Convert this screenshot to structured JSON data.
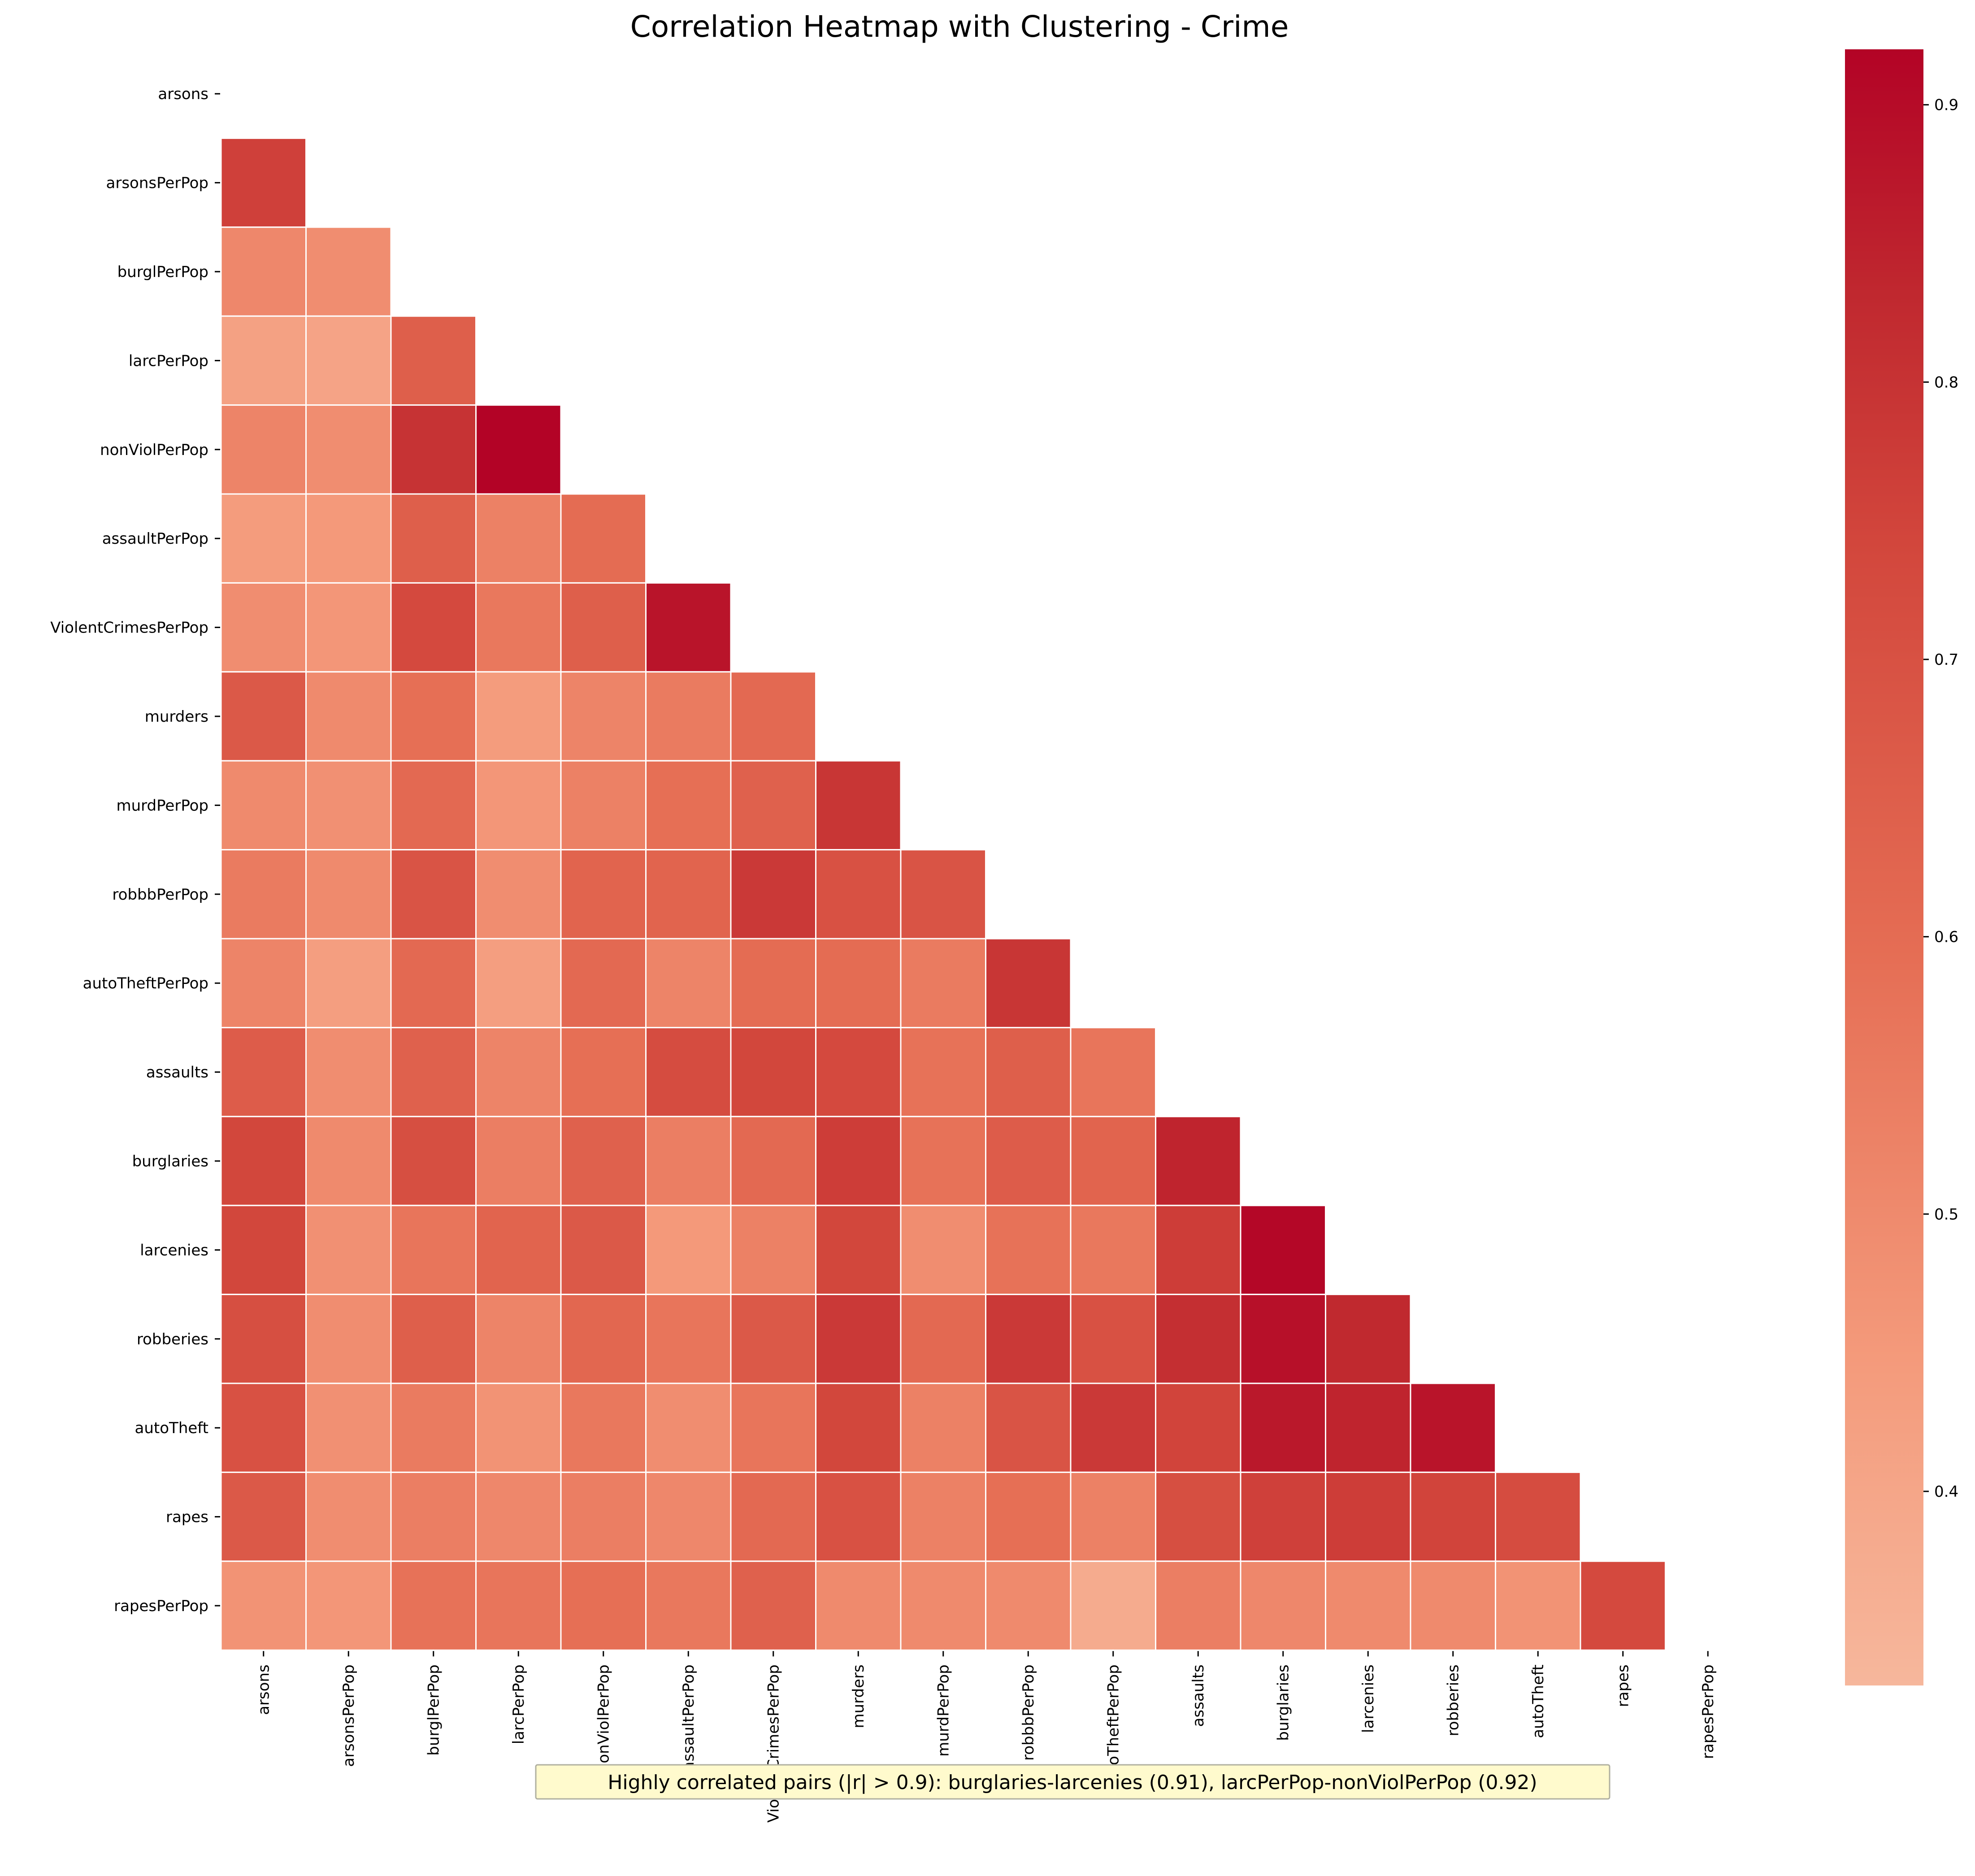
{
  "chart_data": {
    "type": "heatmap",
    "title": "Correlation Heatmap with Clustering - Crime",
    "mask": "lower-triangle (upper triangle and diagonal hidden)",
    "variables": [
      "arsons",
      "arsonsPerPop",
      "burglPerPop",
      "larcPerPop",
      "nonViolPerPop",
      "assaultPerPop",
      "ViolentCrimesPerPop",
      "murders",
      "murdPerPop",
      "robbbPerPop",
      "autoTheftPerPop",
      "assaults",
      "burglaries",
      "larcenies",
      "robberies",
      "autoTheft",
      "rapes",
      "rapesPerPop"
    ],
    "matrix": [
      [],
      [
        0.76
      ],
      [
        0.51,
        0.49
      ],
      [
        0.42,
        0.41,
        0.65
      ],
      [
        0.52,
        0.49,
        0.8,
        0.92
      ],
      [
        0.44,
        0.45,
        0.65,
        0.53,
        0.6
      ],
      [
        0.49,
        0.46,
        0.73,
        0.56,
        0.65,
        0.88
      ],
      [
        0.67,
        0.5,
        0.59,
        0.44,
        0.52,
        0.55,
        0.61
      ],
      [
        0.5,
        0.48,
        0.61,
        0.46,
        0.53,
        0.59,
        0.64,
        0.79
      ],
      [
        0.55,
        0.5,
        0.69,
        0.49,
        0.63,
        0.63,
        0.78,
        0.7,
        0.69
      ],
      [
        0.52,
        0.43,
        0.61,
        0.43,
        0.61,
        0.52,
        0.6,
        0.6,
        0.55,
        0.79
      ],
      [
        0.66,
        0.49,
        0.64,
        0.52,
        0.59,
        0.72,
        0.74,
        0.73,
        0.58,
        0.65,
        0.57
      ],
      [
        0.74,
        0.5,
        0.71,
        0.54,
        0.64,
        0.54,
        0.61,
        0.77,
        0.58,
        0.66,
        0.63,
        0.84
      ],
      [
        0.74,
        0.48,
        0.57,
        0.63,
        0.67,
        0.45,
        0.53,
        0.74,
        0.49,
        0.58,
        0.56,
        0.77,
        0.91
      ],
      [
        0.71,
        0.49,
        0.65,
        0.52,
        0.62,
        0.57,
        0.67,
        0.78,
        0.61,
        0.78,
        0.7,
        0.81,
        0.89,
        0.83
      ],
      [
        0.7,
        0.48,
        0.55,
        0.47,
        0.56,
        0.49,
        0.57,
        0.74,
        0.53,
        0.69,
        0.78,
        0.75,
        0.87,
        0.84,
        0.88
      ],
      [
        0.67,
        0.49,
        0.54,
        0.51,
        0.54,
        0.51,
        0.61,
        0.7,
        0.53,
        0.59,
        0.53,
        0.71,
        0.76,
        0.77,
        0.75,
        0.72
      ],
      [
        0.47,
        0.46,
        0.58,
        0.57,
        0.59,
        0.56,
        0.64,
        0.5,
        0.5,
        0.5,
        0.38,
        0.54,
        0.51,
        0.5,
        0.5,
        0.47,
        0.73
      ]
    ],
    "colorbar": {
      "colormap": "coolwarm (upper half)",
      "vmin": 0.33,
      "vmax": 0.92,
      "ticks": [
        0.4,
        0.5,
        0.6,
        0.7,
        0.8,
        0.9
      ],
      "tick_labels": [
        "0.4",
        "0.5",
        "0.6",
        "0.7",
        "0.8",
        "0.9"
      ]
    },
    "annotation": "Highly correlated pairs (|r| > 0.9): burglaries-larcenies (0.91), larcPerPop-nonViolPerPop (0.92)"
  }
}
